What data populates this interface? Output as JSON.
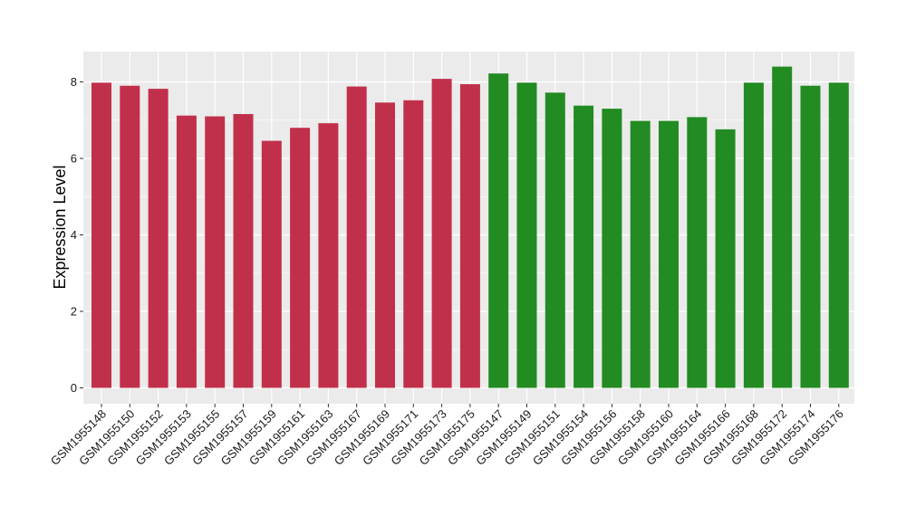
{
  "chart_data": {
    "type": "bar",
    "title": "",
    "xlabel": "",
    "ylabel": "Expression Level",
    "ylim": [
      0,
      8.8
    ],
    "yticks": [
      0,
      2,
      4,
      6,
      8
    ],
    "grid": true,
    "legend": "none",
    "colors": {
      "panel_bg": "#ebebeb",
      "grid": "#ffffff",
      "group_a": "#c1304a",
      "group_b": "#228b22"
    },
    "categories": [
      "GSM1955148",
      "GSM1955150",
      "GSM1955152",
      "GSM1955153",
      "GSM1955155",
      "GSM1955157",
      "GSM1955159",
      "GSM1955161",
      "GSM1955163",
      "GSM1955167",
      "GSM1955169",
      "GSM1955171",
      "GSM1955173",
      "GSM1955175",
      "GSM1955147",
      "GSM1955149",
      "GSM1955151",
      "GSM1955154",
      "GSM1955156",
      "GSM1955158",
      "GSM1955160",
      "GSM1955164",
      "GSM1955166",
      "GSM1955168",
      "GSM1955172",
      "GSM1955174",
      "GSM1955176"
    ],
    "values": [
      7.98,
      7.9,
      7.82,
      7.12,
      7.1,
      7.16,
      6.46,
      6.8,
      6.92,
      7.88,
      7.46,
      7.52,
      8.08,
      7.94,
      8.22,
      7.98,
      7.72,
      7.38,
      7.3,
      6.98,
      6.98,
      7.08,
      6.76,
      7.98,
      8.4,
      7.9,
      7.98
    ],
    "groups": [
      "a",
      "a",
      "a",
      "a",
      "a",
      "a",
      "a",
      "a",
      "a",
      "a",
      "a",
      "a",
      "a",
      "a",
      "b",
      "b",
      "b",
      "b",
      "b",
      "b",
      "b",
      "b",
      "b",
      "b",
      "b",
      "b",
      "b"
    ]
  }
}
